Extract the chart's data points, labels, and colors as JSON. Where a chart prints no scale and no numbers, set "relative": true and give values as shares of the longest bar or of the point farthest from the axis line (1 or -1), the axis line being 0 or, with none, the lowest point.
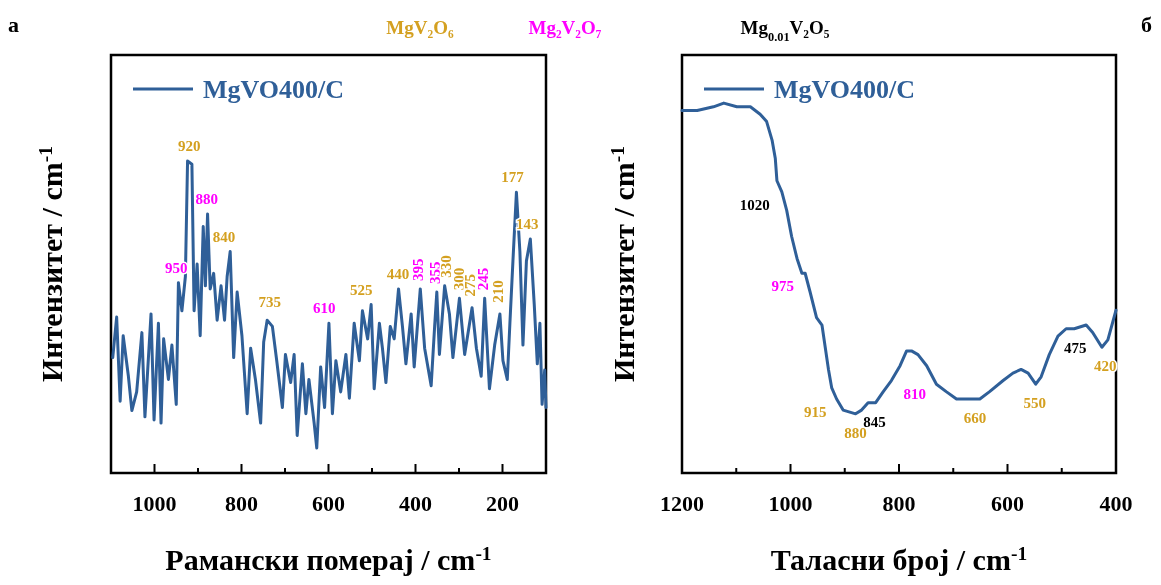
{
  "chart_data": [
    {
      "type": "line",
      "title": "а",
      "xlabel": "Рамански померај / cm$^{-1}$",
      "ylabel": "Интензитет / cm$^{-1}$",
      "relative": true,
      "legend": "top left",
      "xlim": [
        1100,
        100
      ],
      "xticks": [
        1000,
        {
          "value": 900,
          "label": null
        },
        800,
        {
          "value": 700,
          "label": null
        },
        600,
        {
          "value": 500,
          "label": null
        },
        400,
        {
          "value": 300,
          "label": null
        },
        200
      ],
      "series": [
        {
          "name": "MgVO400/C",
          "color": "#2f5f98",
          "x": [
            1096,
            1087,
            1079,
            1072,
            1060,
            1052,
            1041,
            1029,
            1022,
            1008,
            1001,
            991,
            985,
            979,
            968,
            960,
            950,
            945,
            937,
            929,
            924,
            914,
            909,
            902,
            895,
            888,
            883,
            878,
            872,
            864,
            856,
            847,
            839,
            833,
            826,
            818,
            810,
            799,
            787,
            779,
            768,
            756,
            749,
            741,
            729,
            719,
            706,
            699,
            687,
            679,
            672,
            660,
            652,
            645,
            633,
            627,
            618,
            609,
            599,
            591,
            583,
            572,
            560,
            552,
            541,
            529,
            522,
            510,
            502,
            495,
            483,
            476,
            468,
            458,
            449,
            439,
            430,
            422,
            410,
            403,
            389,
            379,
            364,
            356,
            351,
            345,
            333,
            322,
            314,
            299,
            287,
            270,
            260,
            249,
            241,
            230,
            218,
            206,
            199,
            189,
            183,
            176,
            168,
            160,
            153,
            145,
            136,
            127,
            120,
            114,
            109,
            103,
            100
          ],
          "values": [
            0.37,
            0.5,
            0.23,
            0.44,
            0.31,
            0.2,
            0.26,
            0.45,
            0.18,
            0.51,
            0.17,
            0.48,
            0.16,
            0.43,
            0.3,
            0.41,
            0.22,
            0.61,
            0.52,
            0.63,
            1.0,
            0.99,
            0.52,
            0.67,
            0.44,
            0.79,
            0.6,
            0.83,
            0.59,
            0.64,
            0.49,
            0.6,
            0.49,
            0.63,
            0.71,
            0.37,
            0.58,
            0.44,
            0.19,
            0.4,
            0.3,
            0.16,
            0.42,
            0.49,
            0.47,
            0.36,
            0.21,
            0.38,
            0.29,
            0.38,
            0.12,
            0.35,
            0.19,
            0.3,
            0.16,
            0.08,
            0.34,
            0.21,
            0.48,
            0.19,
            0.36,
            0.26,
            0.38,
            0.24,
            0.48,
            0.36,
            0.52,
            0.43,
            0.54,
            0.27,
            0.48,
            0.4,
            0.29,
            0.47,
            0.43,
            0.59,
            0.47,
            0.35,
            0.51,
            0.34,
            0.59,
            0.4,
            0.28,
            0.47,
            0.58,
            0.38,
            0.6,
            0.51,
            0.37,
            0.56,
            0.38,
            0.53,
            0.4,
            0.31,
            0.56,
            0.27,
            0.41,
            0.51,
            0.36,
            0.3,
            0.48,
            0.68,
            0.9,
            0.71,
            0.41,
            0.68,
            0.75,
            0.54,
            0.35,
            0.48,
            0.22,
            0.33,
            0.21
          ]
        }
      ],
      "annotations": [
        "MgV₂O₆",
        "Mg₂V₂O₇",
        "Mg$_{0.01}$V₂O₅",
        {
          "text": "950",
          "x": 950,
          "y": 0.61
        },
        {
          "text": "920",
          "x": 920,
          "y": 1.0
        },
        {
          "text": "880",
          "x": 880,
          "y": 0.83
        },
        {
          "text": "840",
          "x": 840,
          "y": 0.71
        },
        {
          "text": "735",
          "x": 735,
          "y": 0.5
        },
        {
          "text": "610",
          "x": 610,
          "y": 0.48
        },
        {
          "text": "525",
          "x": 525,
          "y": 0.54
        },
        {
          "text": "440",
          "x": 440,
          "y": 0.59
        },
        {
          "text": "395",
          "x": 395,
          "y": 0.59
        },
        {
          "text": "355",
          "x": 355,
          "y": 0.58
        },
        {
          "text": "330",
          "x": 330,
          "y": 0.6
        },
        {
          "text": "300",
          "x": 300,
          "y": 0.56
        },
        {
          "text": "275",
          "x": 275,
          "y": 0.54
        },
        {
          "text": "245",
          "x": 245,
          "y": 0.56
        },
        {
          "text": "210",
          "x": 210,
          "y": 0.52
        },
        {
          "text": "177",
          "x": 177,
          "y": 0.9
        },
        {
          "text": "143",
          "x": 143,
          "y": 0.75
        }
      ]
    },
    {
      "type": "line",
      "title": "б",
      "xlabel": "Таласни број / cm$^{-1}$",
      "ylabel": "Интензитет / cm$^{-1}$",
      "relative": true,
      "legend": "top left",
      "xlim": [
        1200,
        400
      ],
      "xticks": [
        1200,
        {
          "value": 1100,
          "label": null
        },
        1000,
        {
          "value": 900,
          "label": null
        },
        800,
        {
          "value": 700,
          "label": null
        },
        600,
        {
          "value": 500,
          "label": null
        },
        400
      ],
      "series": [
        {
          "name": "MgVO400/C",
          "color": "#2f5f98",
          "x": [
            1200,
            1172,
            1142,
            1123,
            1099,
            1074,
            1056,
            1044,
            1034,
            1028,
            1025,
            1016,
            1007,
            998,
            988,
            979,
            973,
            964,
            952,
            942,
            936,
            930,
            924,
            915,
            903,
            880,
            869,
            857,
            843,
            829,
            814,
            798,
            786,
            777,
            765,
            749,
            731,
            713,
            694,
            679,
            651,
            633,
            608,
            590,
            575,
            562,
            548,
            538,
            523,
            507,
            492,
            477,
            455,
            443,
            426,
            415,
            400
          ],
          "values": [
            0.98,
            0.98,
            0.99,
            1.0,
            0.99,
            0.99,
            0.97,
            0.95,
            0.9,
            0.85,
            0.79,
            0.76,
            0.71,
            0.64,
            0.58,
            0.54,
            0.54,
            0.49,
            0.42,
            0.4,
            0.34,
            0.28,
            0.23,
            0.2,
            0.17,
            0.16,
            0.17,
            0.19,
            0.19,
            0.22,
            0.25,
            0.29,
            0.33,
            0.33,
            0.32,
            0.29,
            0.24,
            0.22,
            0.2,
            0.2,
            0.2,
            0.22,
            0.25,
            0.27,
            0.28,
            0.27,
            0.24,
            0.26,
            0.32,
            0.37,
            0.39,
            0.39,
            0.4,
            0.38,
            0.34,
            0.36,
            0.44
          ]
        }
      ],
      "annotations": [
        {
          "text": "1020",
          "x": 1020,
          "y": 0.76
        },
        {
          "text": "975",
          "x": 975,
          "y": 0.54
        },
        {
          "text": "915",
          "x": 915,
          "y": 0.2
        },
        {
          "text": "880",
          "x": 880,
          "y": 0.16
        },
        {
          "text": "845",
          "x": 845,
          "y": 0.19
        },
        {
          "text": "810",
          "x": 810,
          "y": 0.25
        },
        {
          "text": "660",
          "x": 660,
          "y": 0.2
        },
        {
          "text": "550",
          "x": 550,
          "y": 0.24
        },
        {
          "text": "475",
          "x": 475,
          "y": 0.39
        },
        {
          "text": "420",
          "x": 420,
          "y": 0.34
        }
      ]
    }
  ]
}
